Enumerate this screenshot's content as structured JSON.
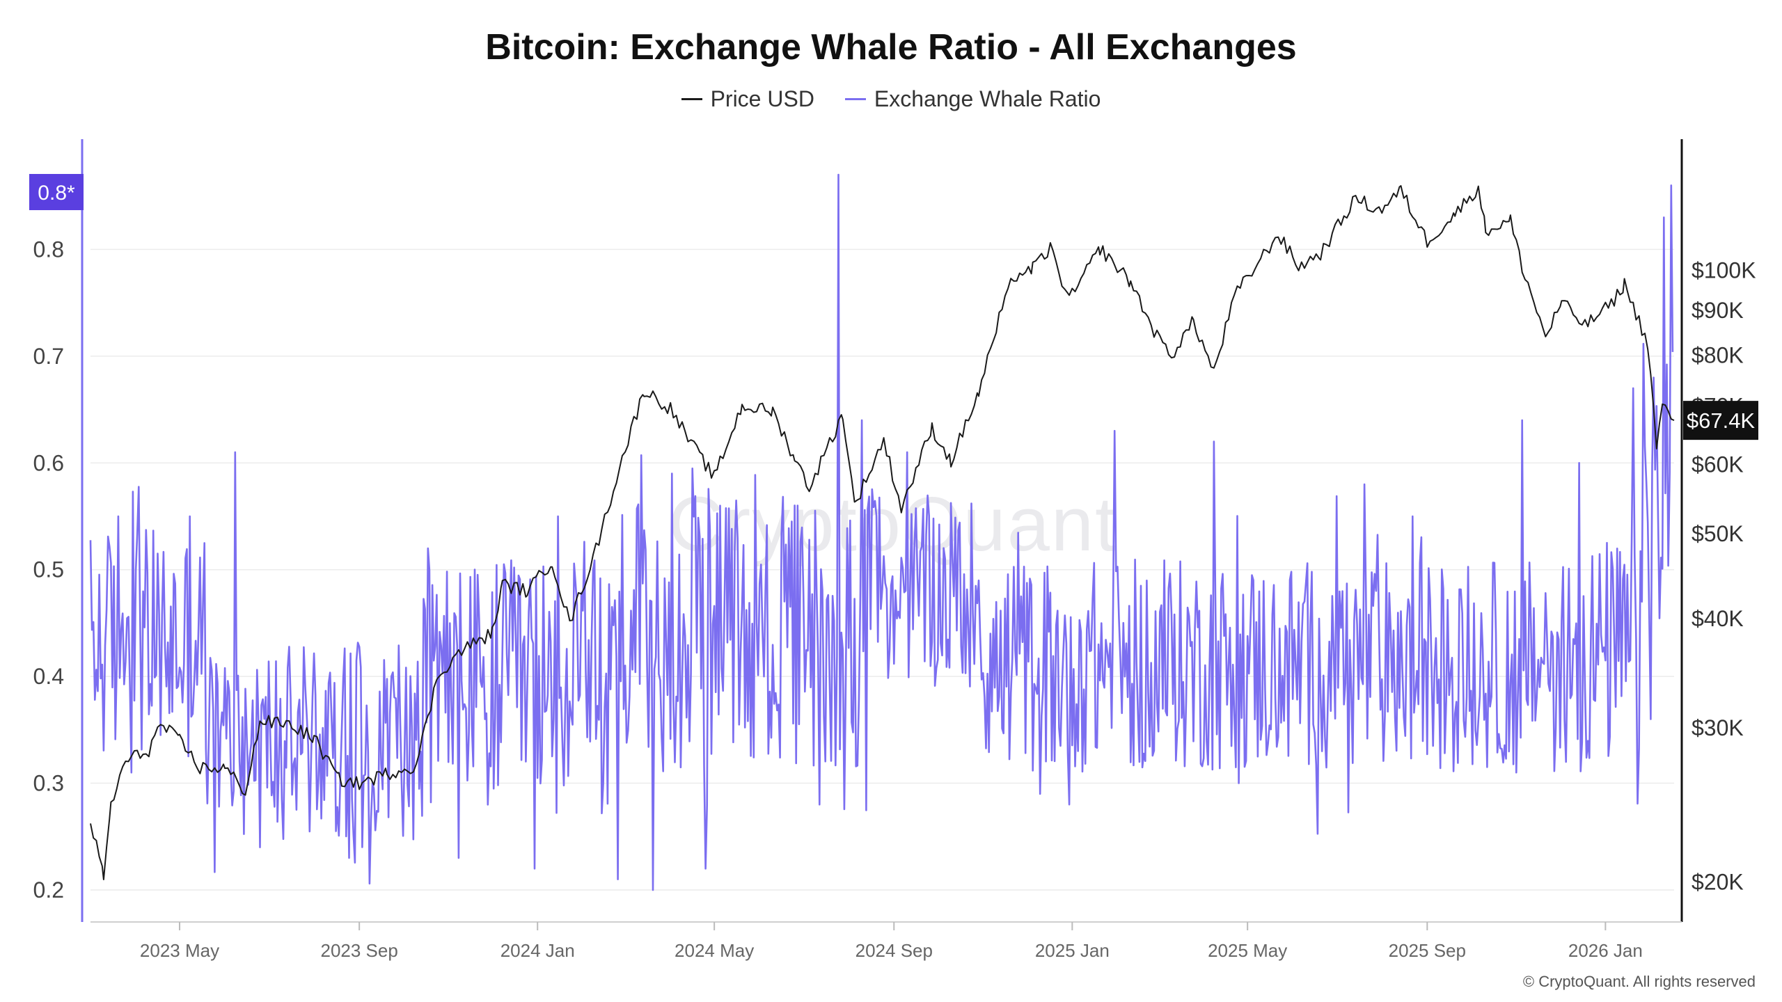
{
  "colors": {
    "price": "#1a1a1a",
    "ratio": "#7b6ef0",
    "badge_left": "#5a3fe0",
    "badge_right": "#111111",
    "grid": "#ececec"
  },
  "chart_data": {
    "type": "line",
    "title": "Bitcoin: Exchange Whale Ratio - All Exchanges",
    "legend": [
      "Price USD",
      "Exchange Whale Ratio"
    ],
    "legend_position": "top-center",
    "x_range": [
      "2023-03-01",
      "2026-02-17"
    ],
    "x_ticks": [
      {
        "label": "2023 May",
        "date": "2023-05-01"
      },
      {
        "label": "2023 Sep",
        "date": "2023-09-01"
      },
      {
        "label": "2024 Jan",
        "date": "2024-01-01"
      },
      {
        "label": "2024 May",
        "date": "2024-05-01"
      },
      {
        "label": "2024 Sep",
        "date": "2024-09-01"
      },
      {
        "label": "2025 Jan",
        "date": "2025-01-01"
      },
      {
        "label": "2025 May",
        "date": "2025-05-01"
      },
      {
        "label": "2025 Sep",
        "date": "2025-09-01"
      },
      {
        "label": "2026 Jan",
        "date": "2026-01-01"
      }
    ],
    "left_axis": {
      "label": "Exchange Whale Ratio",
      "ylim": [
        0.17,
        0.9
      ],
      "ticks": [
        0.2,
        0.3,
        0.4,
        0.5,
        0.6,
        0.7,
        0.8
      ],
      "tick_labels": [
        "0.2",
        "0.3",
        "0.4",
        "0.5",
        "0.6",
        "0.7",
        "0.8"
      ],
      "badge": "0.8*"
    },
    "right_axis": {
      "label": "Price USD",
      "scale": "log",
      "ylim": [
        18000,
        140000
      ],
      "ticks": [
        20000,
        30000,
        40000,
        50000,
        60000,
        70000,
        80000,
        90000,
        100000
      ],
      "tick_labels": [
        "$20K",
        "$30K",
        "$40K",
        "$50K",
        "$60K",
        "$70K",
        "$80K",
        "$90K",
        "$100K"
      ],
      "badge": "$67.4K"
    },
    "series": [
      {
        "name": "Price USD",
        "axis": "right",
        "points": [
          [
            "2023-03-01",
            23500
          ],
          [
            "2023-03-10",
            20200
          ],
          [
            "2023-03-15",
            24500
          ],
          [
            "2023-03-25",
            27500
          ],
          [
            "2023-04-10",
            28300
          ],
          [
            "2023-04-18",
            30300
          ],
          [
            "2023-05-01",
            29000
          ],
          [
            "2023-05-15",
            27000
          ],
          [
            "2023-06-01",
            27000
          ],
          [
            "2023-06-15",
            25400
          ],
          [
            "2023-06-25",
            30500
          ],
          [
            "2023-07-15",
            30300
          ],
          [
            "2023-08-01",
            29200
          ],
          [
            "2023-08-18",
            26200
          ],
          [
            "2023-09-01",
            25900
          ],
          [
            "2023-09-20",
            26600
          ],
          [
            "2023-10-10",
            27200
          ],
          [
            "2023-10-25",
            34500
          ],
          [
            "2023-11-10",
            36800
          ],
          [
            "2023-12-01",
            38500
          ],
          [
            "2023-12-08",
            43800
          ],
          [
            "2023-12-25",
            43000
          ],
          [
            "2024-01-11",
            46500
          ],
          [
            "2024-01-23",
            39500
          ],
          [
            "2024-02-10",
            48000
          ],
          [
            "2024-02-28",
            61000
          ],
          [
            "2024-03-14",
            73000
          ],
          [
            "2024-04-01",
            69500
          ],
          [
            "2024-04-15",
            63500
          ],
          [
            "2024-05-01",
            58000
          ],
          [
            "2024-05-20",
            70000
          ],
          [
            "2024-06-10",
            69000
          ],
          [
            "2024-06-25",
            61000
          ],
          [
            "2024-07-05",
            56500
          ],
          [
            "2024-07-28",
            68500
          ],
          [
            "2024-08-05",
            54000
          ],
          [
            "2024-08-25",
            64000
          ],
          [
            "2024-09-06",
            53500
          ],
          [
            "2024-09-27",
            66000
          ],
          [
            "2024-10-10",
            60500
          ],
          [
            "2024-10-29",
            72500
          ],
          [
            "2024-11-12",
            88000
          ],
          [
            "2024-11-22",
            98500
          ],
          [
            "2024-12-05",
            100500
          ],
          [
            "2024-12-17",
            106000
          ],
          [
            "2024-12-30",
            92500
          ],
          [
            "2025-01-20",
            106000
          ],
          [
            "2025-02-10",
            97000
          ],
          [
            "2025-02-28",
            84000
          ],
          [
            "2025-03-10",
            80000
          ],
          [
            "2025-03-25",
            87500
          ],
          [
            "2025-04-08",
            76500
          ],
          [
            "2025-04-22",
            93500
          ],
          [
            "2025-05-10",
            103000
          ],
          [
            "2025-05-22",
            110000
          ],
          [
            "2025-06-05",
            101000
          ],
          [
            "2025-06-20",
            104500
          ],
          [
            "2025-07-14",
            121000
          ],
          [
            "2025-07-30",
            117000
          ],
          [
            "2025-08-14",
            123500
          ],
          [
            "2025-09-01",
            108000
          ],
          [
            "2025-09-20",
            116000
          ],
          [
            "2025-10-06",
            124500
          ],
          [
            "2025-10-11",
            111000
          ],
          [
            "2025-10-28",
            114000
          ],
          [
            "2025-11-05",
            101000
          ],
          [
            "2025-11-21",
            84000
          ],
          [
            "2025-12-02",
            92000
          ],
          [
            "2025-12-18",
            86500
          ],
          [
            "2026-01-05",
            91500
          ],
          [
            "2026-01-14",
            96500
          ],
          [
            "2026-01-30",
            82500
          ],
          [
            "2026-02-05",
            63000
          ],
          [
            "2026-02-09",
            70000
          ],
          [
            "2026-02-17",
            67400
          ]
        ]
      },
      {
        "name": "Exchange Whale Ratio",
        "axis": "left",
        "segments": [
          {
            "from": "2023-03-01",
            "to": "2023-05-20",
            "base": 0.43,
            "amp": 0.11
          },
          {
            "from": "2023-05-20",
            "to": "2023-10-15",
            "base": 0.34,
            "amp": 0.09
          },
          {
            "from": "2023-10-15",
            "to": "2024-02-20",
            "base": 0.39,
            "amp": 0.12
          },
          {
            "from": "2024-02-20",
            "to": "2024-08-15",
            "base": 0.44,
            "amp": 0.13
          },
          {
            "from": "2024-08-15",
            "to": "2024-11-01",
            "base": 0.48,
            "amp": 0.09
          },
          {
            "from": "2024-11-01",
            "to": "2025-11-15",
            "base": 0.41,
            "amp": 0.1
          },
          {
            "from": "2025-11-15",
            "to": "2026-01-25",
            "base": 0.42,
            "amp": 0.11
          },
          {
            "from": "2026-01-25",
            "to": "2026-02-17",
            "base": 0.58,
            "amp": 0.14
          }
        ],
        "spikes": [
          {
            "date": "2023-03-20",
            "value": 0.55
          },
          {
            "date": "2023-05-08",
            "value": 0.55
          },
          {
            "date": "2023-06-08",
            "value": 0.61
          },
          {
            "date": "2023-06-25",
            "value": 0.24
          },
          {
            "date": "2023-08-25",
            "value": 0.23
          },
          {
            "date": "2023-10-18",
            "value": 0.52
          },
          {
            "date": "2023-11-08",
            "value": 0.23
          },
          {
            "date": "2023-12-30",
            "value": 0.22
          },
          {
            "date": "2024-01-15",
            "value": 0.55
          },
          {
            "date": "2024-02-25",
            "value": 0.21
          },
          {
            "date": "2024-03-20",
            "value": 0.2
          },
          {
            "date": "2024-04-02",
            "value": 0.59
          },
          {
            "date": "2024-04-25",
            "value": 0.22
          },
          {
            "date": "2024-07-12",
            "value": 0.28
          },
          {
            "date": "2024-07-25",
            "value": 0.87
          },
          {
            "date": "2024-08-10",
            "value": 0.64
          },
          {
            "date": "2024-09-10",
            "value": 0.61
          },
          {
            "date": "2024-12-10",
            "value": 0.29
          },
          {
            "date": "2024-12-30",
            "value": 0.28
          },
          {
            "date": "2025-01-30",
            "value": 0.63
          },
          {
            "date": "2025-02-16",
            "value": 0.32
          },
          {
            "date": "2025-04-08",
            "value": 0.62
          },
          {
            "date": "2025-04-25",
            "value": 0.3
          },
          {
            "date": "2025-07-20",
            "value": 0.58
          },
          {
            "date": "2025-08-22",
            "value": 0.55
          },
          {
            "date": "2025-11-01",
            "value": 0.31
          },
          {
            "date": "2025-11-05",
            "value": 0.64
          },
          {
            "date": "2025-12-05",
            "value": 0.32
          },
          {
            "date": "2025-12-14",
            "value": 0.6
          },
          {
            "date": "2026-01-20",
            "value": 0.67
          },
          {
            "date": "2026-01-26",
            "value": 0.47
          },
          {
            "date": "2026-02-01",
            "value": 0.36
          },
          {
            "date": "2026-02-03",
            "value": 0.68
          },
          {
            "date": "2026-02-10",
            "value": 0.83
          },
          {
            "date": "2026-02-15",
            "value": 0.86
          }
        ]
      }
    ]
  },
  "footer": {
    "watermark": "CryptoQuant",
    "copyright": "© CryptoQuant. All rights reserved"
  }
}
